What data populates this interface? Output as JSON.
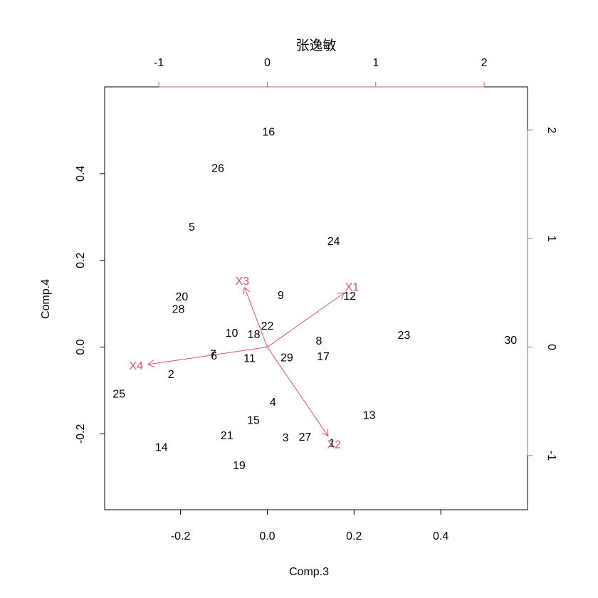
{
  "chart_data": {
    "type": "scatter",
    "subtype": "biplot",
    "title": "张逸敏",
    "xlabel": "Comp.3",
    "ylabel": "Comp.4",
    "xlim": [
      -0.375,
      0.6
    ],
    "ylim": [
      -0.375,
      0.6
    ],
    "xticks": [
      -0.2,
      0.0,
      0.2,
      0.4
    ],
    "xtick_labels": [
      "-0.2",
      "0.0",
      "0.2",
      "0.4"
    ],
    "yticks": [
      -0.2,
      0.0,
      0.2,
      0.4
    ],
    "ytick_labels": [
      "-0.2",
      "0.0",
      "0.2",
      "0.4"
    ],
    "top_axis": {
      "lim": [
        -1.5,
        2.4
      ],
      "ticks": [
        -1,
        0,
        1,
        2
      ],
      "tick_labels": [
        "-1",
        "0",
        "1",
        "2"
      ],
      "color": "#DF536B"
    },
    "right_axis": {
      "lim": [
        -1.5,
        2.4
      ],
      "ticks": [
        -1,
        0,
        1,
        2
      ],
      "tick_labels": [
        "-1",
        "0",
        "1",
        "2"
      ],
      "color": "#DF536B"
    },
    "points": [
      {
        "label": "1",
        "x": 0.149,
        "y": -0.222
      },
      {
        "label": "2",
        "x": -0.222,
        "y": -0.064
      },
      {
        "label": "3",
        "x": 0.042,
        "y": -0.21
      },
      {
        "label": "4",
        "x": 0.013,
        "y": -0.128
      },
      {
        "label": "5",
        "x": -0.174,
        "y": 0.276
      },
      {
        "label": "6",
        "x": -0.123,
        "y": -0.021
      },
      {
        "label": "7",
        "x": -0.125,
        "y": -0.017
      },
      {
        "label": "8",
        "x": 0.119,
        "y": 0.013
      },
      {
        "label": "9",
        "x": 0.031,
        "y": 0.118
      },
      {
        "label": "10",
        "x": -0.082,
        "y": 0.031
      },
      {
        "label": "11",
        "x": -0.041,
        "y": -0.027
      },
      {
        "label": "12",
        "x": 0.19,
        "y": 0.117
      },
      {
        "label": "13",
        "x": 0.235,
        "y": -0.158
      },
      {
        "label": "14",
        "x": -0.244,
        "y": -0.232
      },
      {
        "label": "15",
        "x": -0.032,
        "y": -0.17
      },
      {
        "label": "16",
        "x": 0.003,
        "y": 0.495
      },
      {
        "label": "17",
        "x": 0.129,
        "y": -0.023
      },
      {
        "label": "18",
        "x": -0.031,
        "y": 0.028
      },
      {
        "label": "19",
        "x": -0.065,
        "y": -0.274
      },
      {
        "label": "20",
        "x": -0.197,
        "y": 0.115
      },
      {
        "label": "21",
        "x": -0.093,
        "y": -0.205
      },
      {
        "label": "22",
        "x": 0.0,
        "y": 0.048
      },
      {
        "label": "23",
        "x": 0.315,
        "y": 0.026
      },
      {
        "label": "24",
        "x": 0.153,
        "y": 0.243
      },
      {
        "label": "25",
        "x": -0.342,
        "y": -0.109
      },
      {
        "label": "26",
        "x": -0.114,
        "y": 0.411
      },
      {
        "label": "27",
        "x": 0.087,
        "y": -0.208
      },
      {
        "label": "28",
        "x": -0.205,
        "y": 0.086
      },
      {
        "label": "29",
        "x": 0.045,
        "y": -0.025
      },
      {
        "label": "30",
        "x": 0.561,
        "y": 0.015
      }
    ],
    "loadings": [
      {
        "name": "X1",
        "x": 0.71,
        "y": 0.5
      },
      {
        "name": "X2",
        "x": 0.56,
        "y": -0.82
      },
      {
        "name": "X3",
        "x": -0.21,
        "y": 0.55
      },
      {
        "name": "X4",
        "x": -1.1,
        "y": -0.16
      }
    ],
    "point_color": "#000000",
    "loading_color": "#DF536B"
  }
}
